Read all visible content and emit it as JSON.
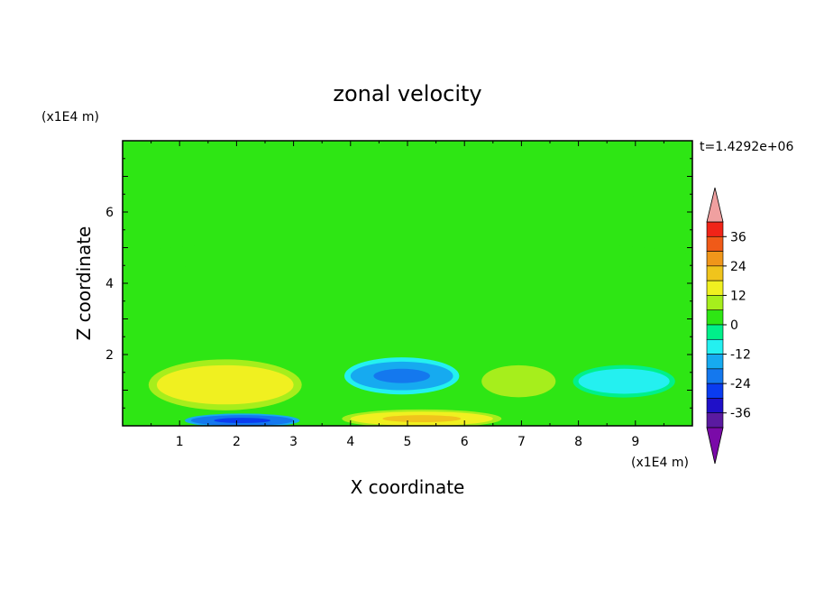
{
  "chart_data": {
    "type": "heatmap",
    "title": "zonal velocity",
    "xlabel": "X coordinate",
    "ylabel": "Z coordinate",
    "x_units": "(x1E4 m)",
    "y_units": "(x1E4 m)",
    "time_label": "t=1.4292e+06",
    "xlim": [
      0,
      10
    ],
    "ylim": [
      0,
      8
    ],
    "x_ticks": [
      1,
      2,
      3,
      4,
      5,
      6,
      7,
      8,
      9
    ],
    "y_ticks": [
      2,
      4,
      6
    ],
    "colorbar": {
      "levels": [
        -42,
        -36,
        -30,
        -24,
        -18,
        -12,
        -6,
        0,
        6,
        12,
        18,
        24,
        30,
        36,
        42
      ],
      "tick_labels": [
        36,
        24,
        12,
        0,
        -12,
        -24,
        -36
      ],
      "colors": [
        "#7a0aa8",
        "#5a1aa0",
        "#1f10c8",
        "#0a3cf0",
        "#1478ee",
        "#16aaf0",
        "#24f0f0",
        "#00f08a",
        "#2ee614",
        "#a6ee1c",
        "#f0f020",
        "#f0c41c",
        "#f0961a",
        "#f05a18",
        "#f02418",
        "#f0a0a0"
      ],
      "extend": "both"
    },
    "background_value": 0,
    "features": [
      {
        "name": "near-zero positive band",
        "x": [
          0,
          10
        ],
        "z": [
          7.0,
          7.6
        ],
        "value": 3
      },
      {
        "name": "near-zero positive band",
        "x": [
          0,
          10
        ],
        "z": [
          5.8,
          6.6
        ],
        "value": 3
      },
      {
        "name": "near-zero positive band",
        "x": [
          0,
          10
        ],
        "z": [
          4.3,
          5.2
        ],
        "value": 3
      },
      {
        "name": "positive jet",
        "x": [
          0.6,
          3.0
        ],
        "z": [
          0.6,
          1.7
        ],
        "value": 12
      },
      {
        "name": "positive jet",
        "x": [
          6.3,
          7.6
        ],
        "z": [
          0.8,
          1.7
        ],
        "value": 10
      },
      {
        "name": "negative core",
        "x": [
          4.0,
          5.8
        ],
        "z": [
          1.0,
          1.8
        ],
        "value": -15
      },
      {
        "name": "negative core",
        "x": [
          8.0,
          9.6
        ],
        "z": [
          0.9,
          1.6
        ],
        "value": -12
      },
      {
        "name": "bottom positive",
        "x": [
          4.0,
          6.5
        ],
        "z": [
          0.0,
          0.4
        ],
        "value": 14
      },
      {
        "name": "bottom negative",
        "x": [
          1.2,
          3.0
        ],
        "z": [
          0.0,
          0.3
        ],
        "value": -20
      }
    ]
  }
}
